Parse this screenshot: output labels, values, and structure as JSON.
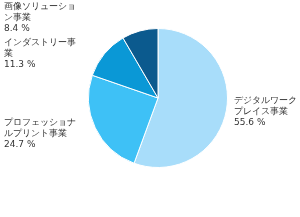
{
  "chart_data": {
    "type": "pie",
    "categories": [
      "デジタルワークプレイス事業",
      "プロフェッショナルプリント事業",
      "インダストリー事業",
      "画像ソリューション事業"
    ],
    "values": [
      55.6,
      24.7,
      11.3,
      8.4
    ],
    "value_labels": [
      "55.6 %",
      "24.7 %",
      "11.3 %",
      "8.4 %"
    ],
    "colors": [
      "#a8ddfa",
      "#3ec1f6",
      "#0a98d6",
      "#0b5a8e"
    ],
    "data_labels": true
  }
}
